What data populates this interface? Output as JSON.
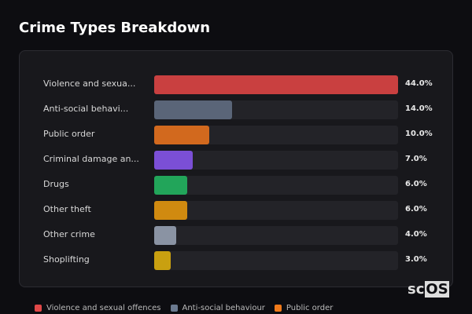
{
  "chart_data": {
    "type": "bar",
    "orientation": "horizontal",
    "title": "Crime Types Breakdown",
    "categories": [
      "Violence and sexua...",
      "Anti-social behavi...",
      "Public order",
      "Criminal damage an...",
      "Drugs",
      "Other theft",
      "Other crime",
      "Shoplifting"
    ],
    "values": [
      44.0,
      14.0,
      10.0,
      7.0,
      6.0,
      6.0,
      4.0,
      3.0
    ],
    "value_labels": [
      "44.0%",
      "14.0%",
      "10.0%",
      "7.0%",
      "6.0%",
      "6.0%",
      "4.0%",
      "3.0%"
    ],
    "colors": [
      "#c94040",
      "#5a6578",
      "#d2691e",
      "#7b4fd6",
      "#22a55a",
      "#d08a10",
      "#8a93a3",
      "#c9a010"
    ],
    "xlim": [
      0,
      44
    ],
    "legend": [
      {
        "label": "Violence and sexual offences",
        "color": "#e04848"
      },
      {
        "label": "Anti-social behaviour",
        "color": "#6b7a90"
      },
      {
        "label": "Public order",
        "color": "#f07a1a"
      }
    ],
    "legend_position": "bottom"
  },
  "logo": {
    "prefix": "sc",
    "boxed": "OS"
  }
}
